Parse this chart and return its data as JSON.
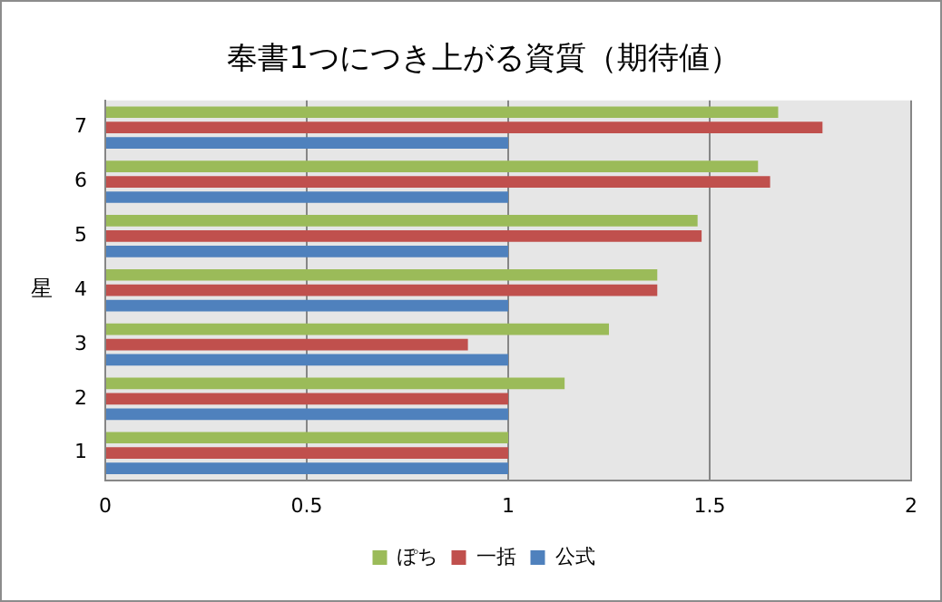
{
  "chart_data": {
    "type": "bar",
    "orientation": "horizontal",
    "title": "奉書1つにつき上がる資質（期待値）",
    "ylabel": "星",
    "categories": [
      "7",
      "6",
      "5",
      "4",
      "3",
      "2",
      "1"
    ],
    "series": [
      {
        "name": "ぽち",
        "color": "#9bbb59",
        "values": [
          1.67,
          1.62,
          1.47,
          1.37,
          1.25,
          1.14,
          1
        ]
      },
      {
        "name": "一括",
        "color": "#c0504d",
        "values": [
          1.78,
          1.65,
          1.48,
          1.37,
          0.9,
          1,
          1
        ]
      },
      {
        "name": "公式",
        "color": "#4f81bd",
        "values": [
          1,
          1,
          1,
          1,
          1,
          1,
          1
        ]
      }
    ],
    "xlim": [
      0,
      2
    ],
    "xticks": [
      0,
      0.5,
      1,
      1.5,
      2
    ],
    "grid": "x",
    "legend": "bottom"
  }
}
